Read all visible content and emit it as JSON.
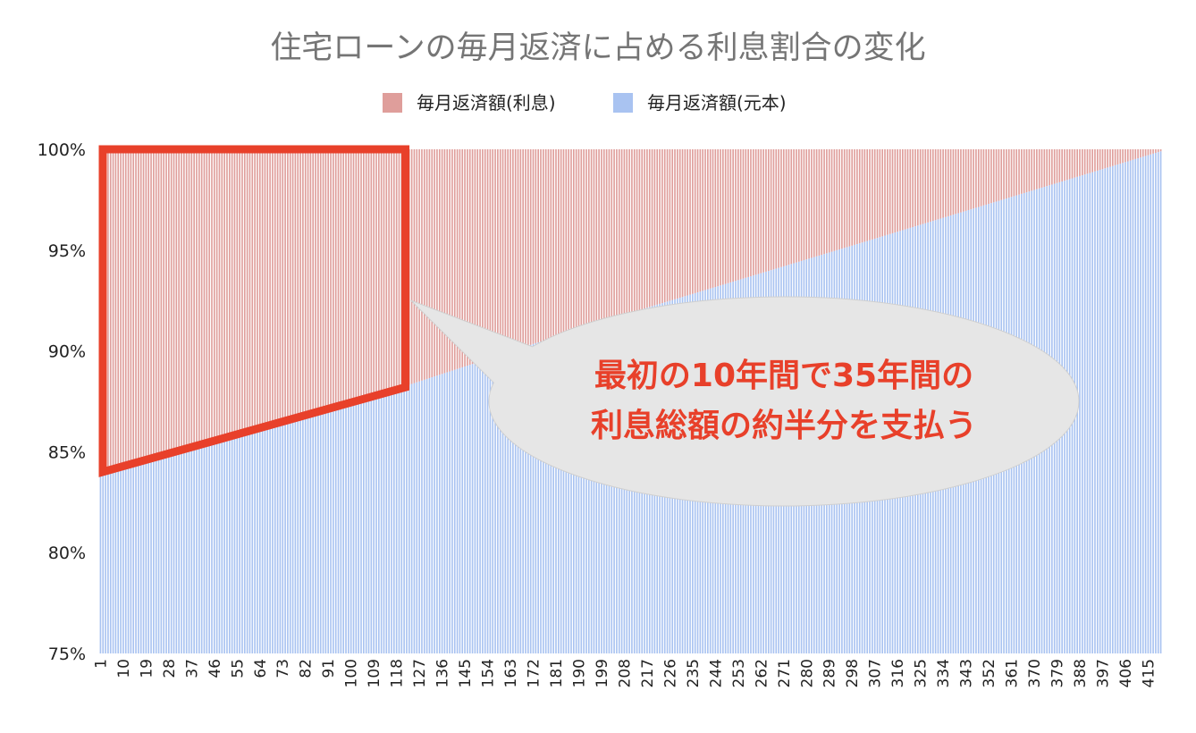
{
  "chart_data": {
    "type": "bar",
    "stacked": "percent",
    "title": "住宅ローンの毎月返済に占める利息割合の変化",
    "legend": {
      "position": "top",
      "items": [
        "毎月返済額(利息)",
        "毎月返済額(元本)"
      ]
    },
    "x": {
      "start": 1,
      "end": 420,
      "step": 1,
      "tick_step": 9
    },
    "x_ticks": [
      "1",
      "10",
      "19",
      "28",
      "37",
      "46",
      "55",
      "64",
      "73",
      "82",
      "91",
      "100",
      "109",
      "118",
      "127",
      "136",
      "145",
      "154",
      "163",
      "172",
      "181",
      "190",
      "199",
      "208",
      "217",
      "226",
      "235",
      "244",
      "253",
      "262",
      "271",
      "280",
      "289",
      "298",
      "307",
      "316",
      "325",
      "334",
      "343",
      "352",
      "361",
      "370",
      "379",
      "388",
      "397",
      "406",
      "415"
    ],
    "ylim": [
      75,
      100
    ],
    "y_ticks": [
      "75%",
      "80%",
      "85%",
      "90%",
      "95%",
      "100%"
    ],
    "series": [
      {
        "name": "毎月返済額(利息)",
        "color": "#df9e9b",
        "note": "interest share, % of monthly payment (complement of principal)",
        "values_rule": "100 - principal"
      },
      {
        "name": "毎月返済額(元本)",
        "color": "#a9c3f1",
        "principal_share_keypoints": [
          {
            "month": 1,
            "value": 84.0
          },
          {
            "month": 120,
            "value": 88.2
          },
          {
            "month": 200,
            "value": 91.5
          },
          {
            "month": 300,
            "value": 95.3
          },
          {
            "month": 420,
            "value": 99.9
          }
        ]
      }
    ],
    "annotation": {
      "lines": [
        "最初の10年間で35年間の",
        "利息総額の約半分を支払う"
      ],
      "highlight_range": [
        1,
        120
      ],
      "highlight_color": "#e8402a",
      "bubble_color": "#e6e6e6"
    }
  }
}
